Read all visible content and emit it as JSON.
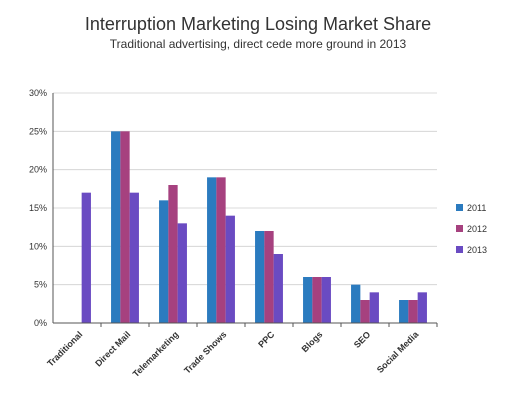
{
  "chart_data": {
    "type": "bar",
    "title": "Interruption Marketing Losing Market Share",
    "subtitle": "Traditional advertising, direct cede more ground in 2013",
    "categories": [
      "Traditional",
      "Direct Mail",
      "Telemarketing",
      "Trade Shows",
      "PPC",
      "Blogs",
      "SEO",
      "Social Media"
    ],
    "series": [
      {
        "name": "2011",
        "color": "#2b7bbf",
        "values": [
          null,
          25,
          16,
          19,
          12,
          6,
          5,
          3
        ]
      },
      {
        "name": "2012",
        "color": "#a6417f",
        "values": [
          null,
          25,
          18,
          19,
          12,
          6,
          3,
          3
        ]
      },
      {
        "name": "2013",
        "color": "#6a4bc2",
        "values": [
          17,
          17,
          13,
          14,
          9,
          6,
          4,
          4
        ]
      }
    ],
    "ylim": [
      0,
      30
    ],
    "yticks": [
      "0%",
      "5%",
      "10%",
      "15%",
      "20%",
      "25%",
      "30%"
    ],
    "grid": true,
    "legend": "right"
  }
}
